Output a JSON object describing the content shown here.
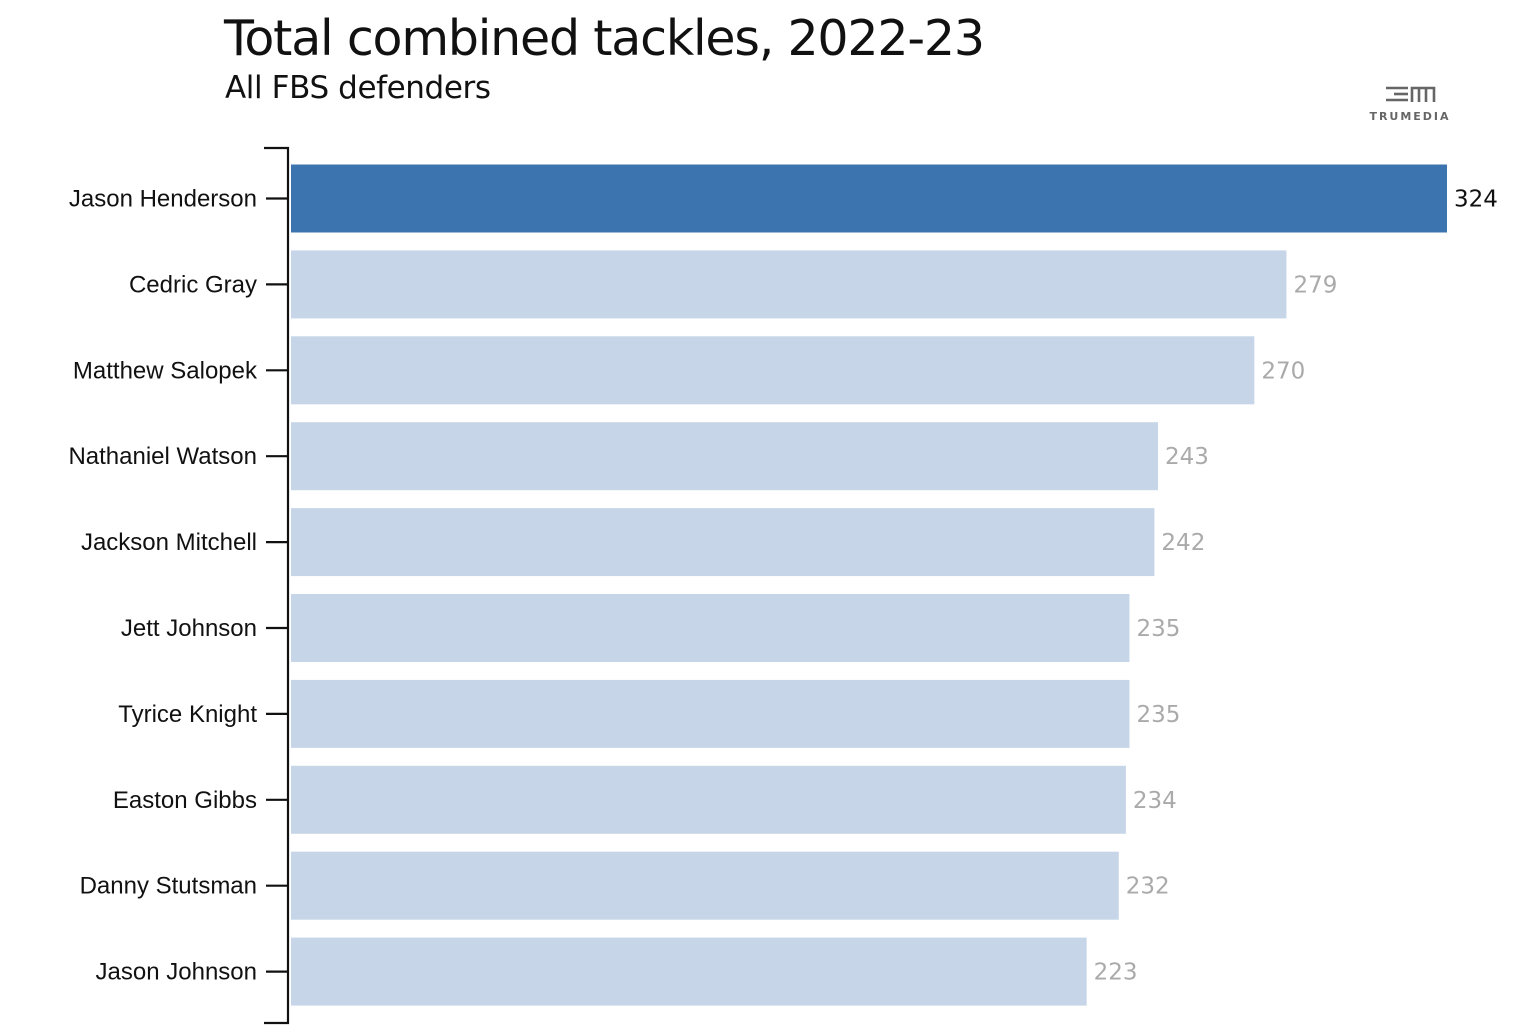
{
  "header": {
    "title": "Total combined tackles, 2022-23",
    "subtitle": "All FBS defenders"
  },
  "logo": {
    "icon": "trumedia-logo-icon",
    "text": "TRUMEDIA"
  },
  "colors": {
    "highlight_bar": "#3b74ae",
    "bar": "#c6d6e8",
    "highlight_label": "#111111",
    "label": "#aaaaaa",
    "axis": "#111111"
  },
  "chart_data": {
    "type": "bar",
    "orientation": "horizontal",
    "title": "Total combined tackles, 2022-23",
    "subtitle": "All FBS defenders",
    "xlabel": "",
    "ylabel": "",
    "grid": false,
    "xlim": [
      0,
      324
    ],
    "categories": [
      "Jason Henderson",
      "Cedric Gray",
      "Matthew Salopek",
      "Nathaniel Watson",
      "Jackson Mitchell",
      "Jett Johnson",
      "Tyrice Knight",
      "Easton Gibbs",
      "Danny Stutsman",
      "Jason Johnson"
    ],
    "values": [
      324,
      279,
      270,
      243,
      242,
      235,
      235,
      234,
      232,
      223
    ],
    "highlight_index": 0
  }
}
